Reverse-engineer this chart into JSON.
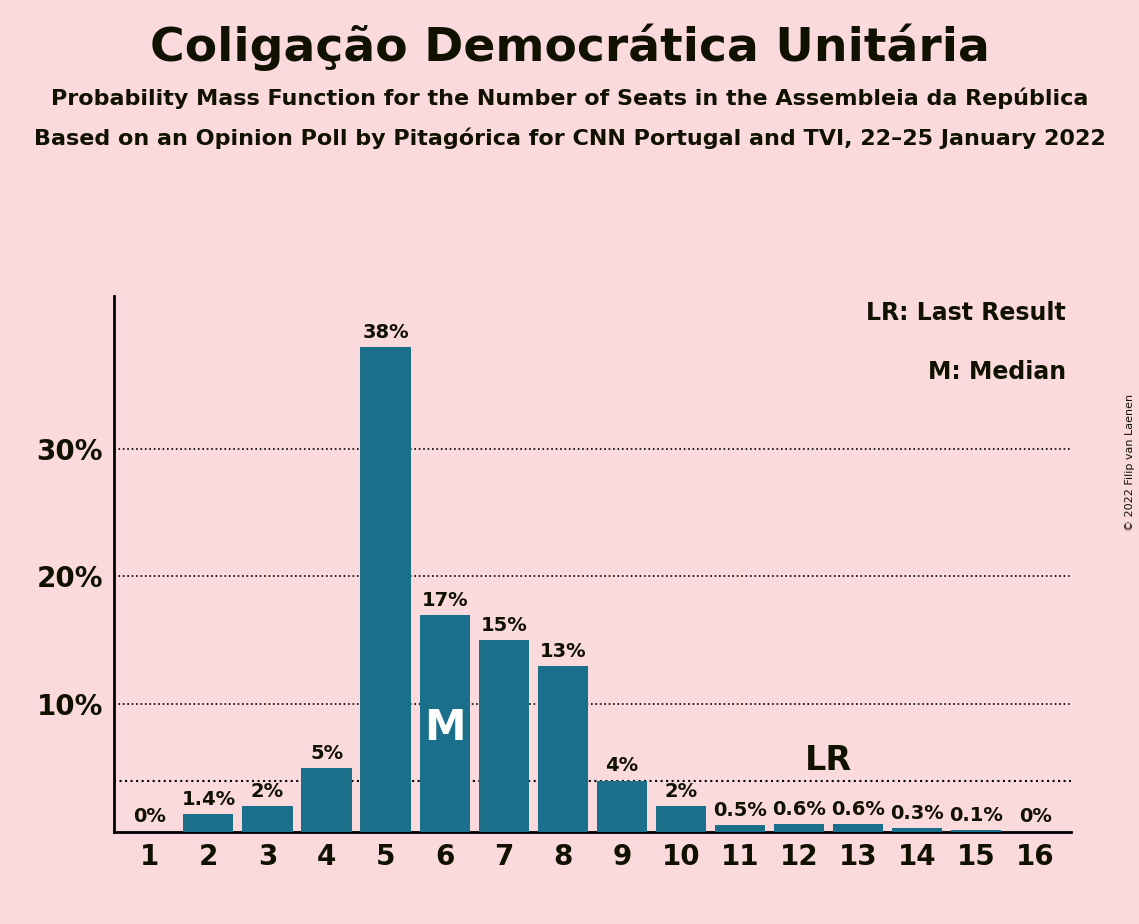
{
  "title": "Coligação Democrática Unitária",
  "subtitle1": "Probability Mass Function for the Number of Seats in the Assembleia da República",
  "subtitle2": "Based on an Opinion Poll by Pitagórica for CNN Portugal and TVI, 22–25 January 2022",
  "copyright": "© 2022 Filip van Laenen",
  "categories": [
    1,
    2,
    3,
    4,
    5,
    6,
    7,
    8,
    9,
    10,
    11,
    12,
    13,
    14,
    15,
    16
  ],
  "values": [
    0.0,
    1.4,
    2.0,
    5.0,
    38.0,
    17.0,
    15.0,
    13.0,
    4.0,
    2.0,
    0.5,
    0.6,
    0.6,
    0.3,
    0.1,
    0.0
  ],
  "labels": [
    "0%",
    "1.4%",
    "2%",
    "5%",
    "38%",
    "17%",
    "15%",
    "13%",
    "4%",
    "2%",
    "0.5%",
    "0.6%",
    "0.6%",
    "0.3%",
    "0.1%",
    "0%"
  ],
  "bar_color": "#1a6f8a",
  "background_color": "#fadadd",
  "text_color": "#111100",
  "yticks": [
    10,
    20,
    30
  ],
  "ylim": [
    0,
    42
  ],
  "median_seat": 6,
  "lr_seat": 10,
  "lr_value": 4.0,
  "legend_lr": "LR: Last Result",
  "legend_m": "M: Median",
  "title_fontsize": 34,
  "subtitle_fontsize": 16,
  "axis_tick_fontsize": 20,
  "bar_label_fontsize": 14,
  "legend_fontsize": 17,
  "m_fontsize": 30,
  "lr_text_fontsize": 24
}
